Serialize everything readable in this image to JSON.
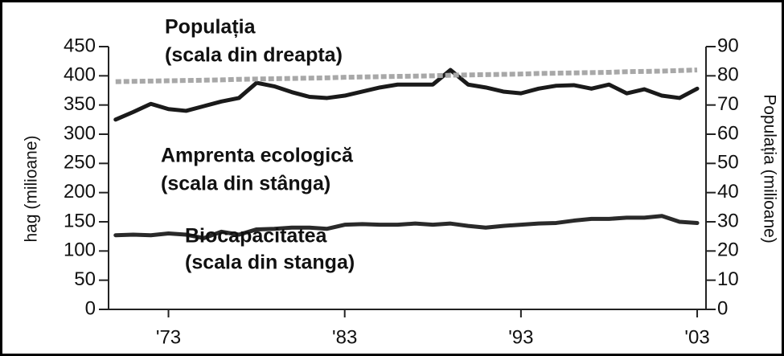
{
  "chart_data": {
    "type": "line",
    "axis_label_left": "hag (milioane)",
    "axis_label_right": "Populația (milioane)",
    "annotations": [
      "Populația",
      "(scala din dreapta)",
      "Amprenta ecologică",
      "(scala din stânga)",
      "Biocapacitatea",
      "(scala din stanga)"
    ],
    "x": [
      1970,
      1971,
      1972,
      1973,
      1974,
      1975,
      1976,
      1977,
      1978,
      1979,
      1980,
      1981,
      1982,
      1983,
      1984,
      1985,
      1986,
      1987,
      1988,
      1989,
      1990,
      1991,
      1992,
      1993,
      1994,
      1995,
      1996,
      1997,
      1998,
      1999,
      2000,
      2001,
      2002,
      2003
    ],
    "series": [
      {
        "color": "#1a1a1a",
        "dashed": false,
        "axis": "y",
        "values": [
          325,
          338,
          352,
          343,
          340,
          348,
          356,
          362,
          388,
          382,
          372,
          364,
          362,
          366,
          373,
          380,
          385,
          385,
          385,
          410,
          385,
          380,
          373,
          370,
          378,
          383,
          384,
          378,
          385,
          370,
          377,
          366,
          362,
          378
        ]
      },
      {
        "color": "#2a2a2a",
        "dashed": false,
        "axis": "y",
        "values": [
          127,
          128,
          127,
          130,
          128,
          122,
          133,
          128,
          137,
          138,
          140,
          140,
          138,
          145,
          146,
          145,
          145,
          147,
          145,
          147,
          143,
          140,
          143,
          145,
          147,
          148,
          152,
          155,
          155,
          157,
          157,
          160,
          150,
          148
        ]
      },
      {
        "color": "#a8a8a8",
        "dashed": true,
        "axis": "y2",
        "values": [
          78.0,
          78.1,
          78.2,
          78.3,
          78.4,
          78.5,
          78.6,
          78.8,
          78.9,
          79.0,
          79.1,
          79.2,
          79.3,
          79.5,
          79.6,
          79.7,
          79.8,
          79.9,
          80.0,
          80.2,
          80.3,
          80.4,
          80.5,
          80.6,
          80.8,
          80.9,
          81.0,
          81.1,
          81.2,
          81.4,
          81.5,
          81.6,
          81.8,
          82.0
        ]
      }
    ],
    "xlim": [
      1969.6,
      2003.5
    ],
    "xticks": [
      {
        "value": 1973,
        "label": "'73"
      },
      {
        "value": 1983,
        "label": "'83"
      },
      {
        "value": 1993,
        "label": "'93"
      },
      {
        "value": 2003,
        "label": "'03"
      }
    ],
    "ylim": [
      0,
      450
    ],
    "yticks": [
      0,
      50,
      100,
      150,
      200,
      250,
      300,
      350,
      400,
      450
    ],
    "y2lim": [
      0,
      90
    ],
    "y2ticks": [
      0,
      10,
      20,
      30,
      40,
      50,
      60,
      70,
      80,
      90
    ]
  }
}
